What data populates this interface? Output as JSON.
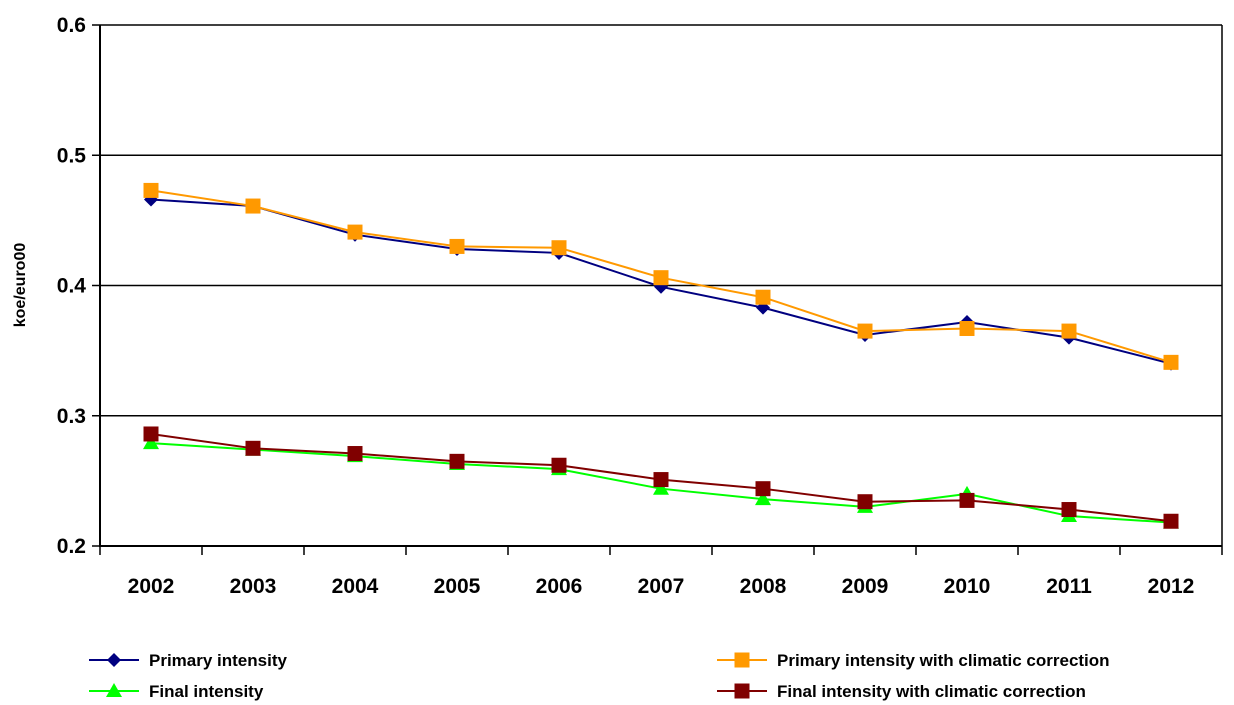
{
  "chart_data": {
    "type": "line",
    "title": "",
    "xlabel": "",
    "ylabel": "koe/euro00",
    "ylim": [
      0.2,
      0.6
    ],
    "yticks": [
      "0.2",
      "0.3",
      "0.4",
      "0.5",
      "0.6"
    ],
    "grid": "horizontal",
    "legend_position": "bottom",
    "categories": [
      "2002",
      "2003",
      "2004",
      "2005",
      "2006",
      "2007",
      "2008",
      "2009",
      "2010",
      "2011",
      "2012"
    ],
    "series": [
      {
        "name": "Primary intensity",
        "color": "#000080",
        "marker": "diamond",
        "values": [
          0.466,
          0.461,
          0.439,
          0.428,
          0.425,
          0.399,
          0.383,
          0.362,
          0.372,
          0.36,
          0.34
        ]
      },
      {
        "name": "Primary intensity with climatic correction",
        "color": "#FF9900",
        "marker": "square",
        "values": [
          0.473,
          0.461,
          0.441,
          0.43,
          0.429,
          0.406,
          0.391,
          0.365,
          0.367,
          0.365,
          0.341
        ]
      },
      {
        "name": "Final intensity",
        "color": "#00FF00",
        "marker": "triangle",
        "values": [
          0.279,
          0.274,
          0.269,
          0.263,
          0.259,
          0.244,
          0.236,
          0.23,
          0.24,
          0.223,
          0.218
        ]
      },
      {
        "name": "Final intensity with climatic correction",
        "color": "#800000",
        "marker": "square",
        "values": [
          0.286,
          0.275,
          0.271,
          0.265,
          0.262,
          0.251,
          0.244,
          0.234,
          0.235,
          0.228,
          0.219
        ]
      }
    ]
  }
}
